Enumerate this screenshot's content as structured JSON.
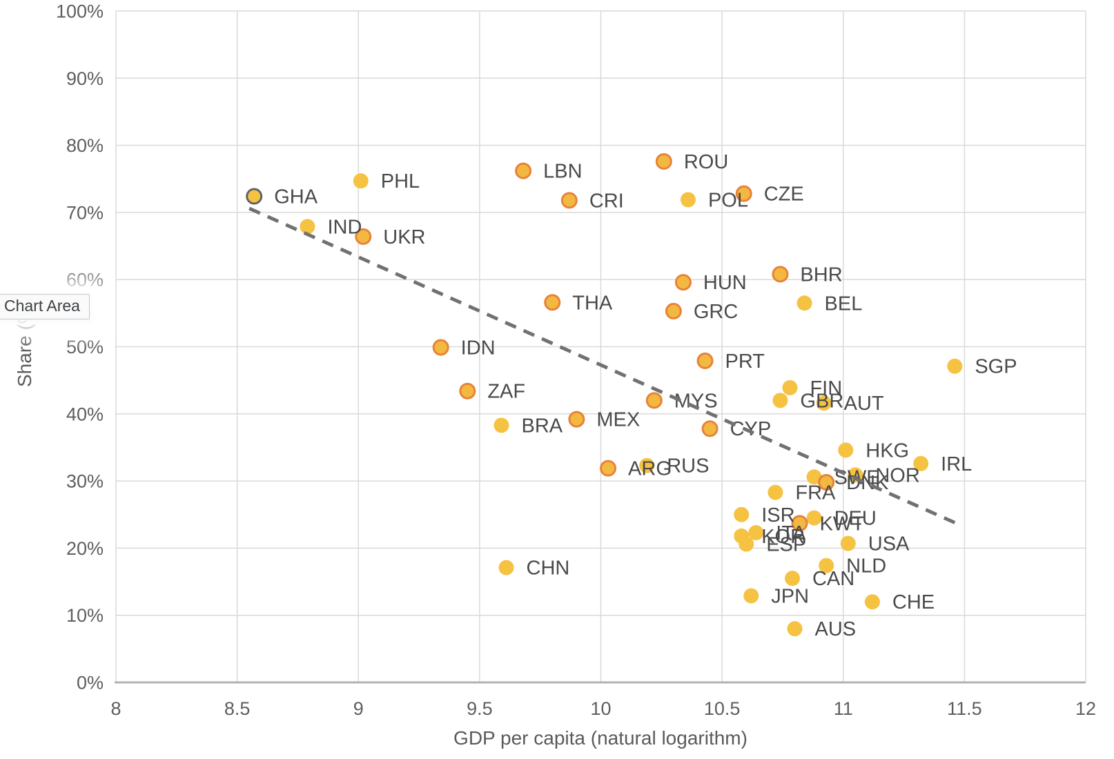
{
  "tooltip": {
    "label": "Chart Area"
  },
  "colors": {
    "background": "#ffffff",
    "grid": "#d9d9d9",
    "axis_line": "#b1b1b1",
    "tick_text": "#5e5e5e",
    "point_label_text": "#4a4a4a",
    "trend_line": "#717171"
  },
  "chart_data": {
    "type": "scatter",
    "title": "",
    "xlabel": "GDP per capita (natural logarithm)",
    "ylabel": "Share (%)",
    "xlim": [
      8,
      12
    ],
    "ylim": [
      0,
      100
    ],
    "x_tick_labels": [
      "8",
      "8.5",
      "9",
      "9.5",
      "10",
      "10.5",
      "11",
      "11.5",
      "12"
    ],
    "y_tick_labels": [
      "0%",
      "10%",
      "20%",
      "30%",
      "40%",
      "50%",
      "60%",
      "70%",
      "80%",
      "90%",
      "100%"
    ],
    "grid": true,
    "legend": "none",
    "marker_styles": {
      "plain": {
        "fill": "#f5c242",
        "stroke": "none",
        "r": 11,
        "stroke_width": 0
      },
      "outlined": {
        "fill": "#f3b840",
        "stroke": "#e8823a",
        "r": 10.5,
        "stroke_width": 3
      },
      "highlighted": {
        "fill": "#f5c242",
        "stroke": "#5f6368",
        "r": 10.5,
        "stroke_width": 3
      }
    },
    "points": [
      {
        "code": "GHA",
        "x": 8.57,
        "y": 72.4,
        "style": "highlighted"
      },
      {
        "code": "PHL",
        "x": 9.01,
        "y": 74.7,
        "style": "plain"
      },
      {
        "code": "IND",
        "x": 8.79,
        "y": 67.9,
        "style": "plain"
      },
      {
        "code": "UKR",
        "x": 9.02,
        "y": 66.4,
        "style": "outlined"
      },
      {
        "code": "LBN",
        "x": 9.68,
        "y": 76.2,
        "style": "outlined"
      },
      {
        "code": "CRI",
        "x": 9.87,
        "y": 71.8,
        "style": "outlined"
      },
      {
        "code": "ROU",
        "x": 10.26,
        "y": 77.6,
        "style": "outlined"
      },
      {
        "code": "POL",
        "x": 10.36,
        "y": 71.9,
        "style": "plain"
      },
      {
        "code": "CZE",
        "x": 10.59,
        "y": 72.8,
        "style": "outlined"
      },
      {
        "code": "HUN",
        "x": 10.34,
        "y": 59.6,
        "style": "outlined"
      },
      {
        "code": "BHR",
        "x": 10.74,
        "y": 60.8,
        "style": "outlined"
      },
      {
        "code": "THA",
        "x": 9.8,
        "y": 56.6,
        "style": "outlined"
      },
      {
        "code": "GRC",
        "x": 10.3,
        "y": 55.3,
        "style": "outlined"
      },
      {
        "code": "BEL",
        "x": 10.84,
        "y": 56.5,
        "style": "plain"
      },
      {
        "code": "IDN",
        "x": 9.34,
        "y": 49.9,
        "style": "outlined"
      },
      {
        "code": "PRT",
        "x": 10.43,
        "y": 47.9,
        "style": "outlined"
      },
      {
        "code": "SGP",
        "x": 11.46,
        "y": 47.1,
        "style": "plain"
      },
      {
        "code": "FIN",
        "x": 10.78,
        "y": 43.9,
        "style": "plain"
      },
      {
        "code": "GBR",
        "x": 10.74,
        "y": 42.0,
        "style": "plain"
      },
      {
        "code": "AUT",
        "x": 10.92,
        "y": 41.6,
        "style": "plain"
      },
      {
        "code": "ZAF",
        "x": 9.45,
        "y": 43.4,
        "style": "outlined"
      },
      {
        "code": "MYS",
        "x": 10.22,
        "y": 42.0,
        "style": "outlined"
      },
      {
        "code": "BRA",
        "x": 9.59,
        "y": 38.3,
        "style": "plain"
      },
      {
        "code": "MEX",
        "x": 9.9,
        "y": 39.2,
        "style": "outlined"
      },
      {
        "code": "CYP",
        "x": 10.45,
        "y": 37.8,
        "style": "outlined"
      },
      {
        "code": "ARG",
        "x": 10.03,
        "y": 31.9,
        "style": "outlined"
      },
      {
        "code": "RUS",
        "x": 10.19,
        "y": 32.3,
        "style": "plain"
      },
      {
        "code": "HKG",
        "x": 11.01,
        "y": 34.6,
        "style": "plain"
      },
      {
        "code": "IRL",
        "x": 11.32,
        "y": 32.6,
        "style": "plain"
      },
      {
        "code": "SWE",
        "x": 10.88,
        "y": 30.6,
        "style": "plain"
      },
      {
        "code": "NOR",
        "x": 11.05,
        "y": 30.9,
        "style": "plain"
      },
      {
        "code": "DNK",
        "x": 10.93,
        "y": 29.8,
        "style": "outlined"
      },
      {
        "code": "FRA",
        "x": 10.72,
        "y": 28.3,
        "style": "plain"
      },
      {
        "code": "ISR",
        "x": 10.58,
        "y": 25.0,
        "style": "plain"
      },
      {
        "code": "DEU",
        "x": 10.88,
        "y": 24.5,
        "style": "plain"
      },
      {
        "code": "KWT",
        "x": 10.82,
        "y": 23.7,
        "style": "outlined"
      },
      {
        "code": "KOR",
        "x": 10.58,
        "y": 21.8,
        "style": "plain"
      },
      {
        "code": "ITA",
        "x": 10.64,
        "y": 22.3,
        "style": "plain"
      },
      {
        "code": "ESP",
        "x": 10.6,
        "y": 20.6,
        "style": "plain"
      },
      {
        "code": "USA",
        "x": 11.02,
        "y": 20.7,
        "style": "plain"
      },
      {
        "code": "NLD",
        "x": 10.93,
        "y": 17.4,
        "style": "plain"
      },
      {
        "code": "CAN",
        "x": 10.79,
        "y": 15.5,
        "style": "plain"
      },
      {
        "code": "CHN",
        "x": 9.61,
        "y": 17.1,
        "style": "plain"
      },
      {
        "code": "JPN",
        "x": 10.62,
        "y": 12.9,
        "style": "plain"
      },
      {
        "code": "CHE",
        "x": 11.12,
        "y": 12.0,
        "style": "plain"
      },
      {
        "code": "AUS",
        "x": 10.8,
        "y": 8.0,
        "style": "plain"
      }
    ],
    "trendline": {
      "type": "linear",
      "dashed": true,
      "x1": 8.55,
      "y1": 70.6,
      "x2": 11.46,
      "y2": 23.8
    }
  }
}
